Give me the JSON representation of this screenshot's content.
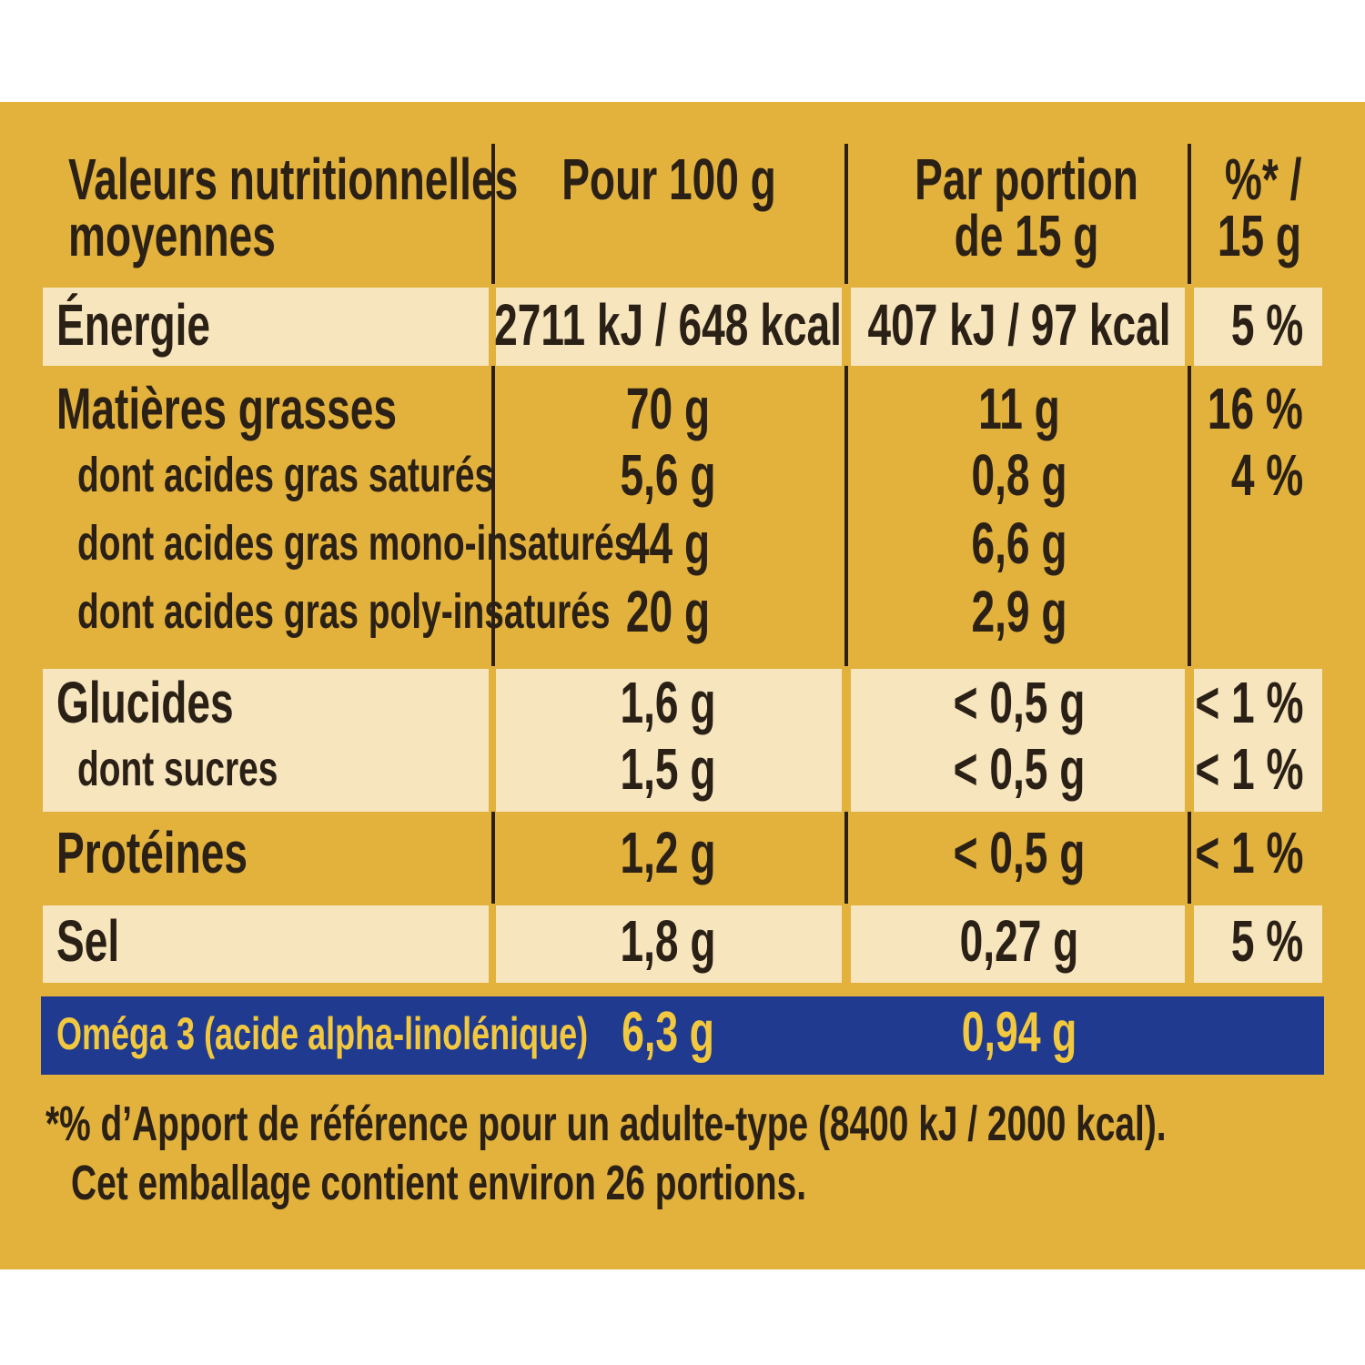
{
  "header": [
    [
      "Valeurs nutritionnelles",
      "moyennes"
    ],
    [
      "Pour 100 g"
    ],
    [
      "Par portion",
      "de 15 g"
    ],
    [
      "%* /",
      "15 g"
    ]
  ],
  "rows": [
    [
      "Énergie",
      "2711 kJ / 648 kcal",
      "407 kJ / 97 kcal",
      "5 %"
    ],
    [
      "Matières grasses",
      "70 g",
      "11 g",
      "16 %"
    ],
    [
      "dont acides gras saturés",
      "5,6 g",
      "0,8 g",
      "4 %"
    ],
    [
      "dont acides gras mono-insaturés",
      "44 g",
      "6,6 g",
      null
    ],
    [
      "dont acides gras poly-insaturés",
      "20 g",
      "2,9 g",
      null
    ],
    [
      "Glucides",
      "1,6 g",
      "< 0,5 g",
      "< 1 %"
    ],
    [
      "dont sucres",
      "1,5 g",
      "< 0,5 g",
      "< 1 %"
    ],
    [
      "Protéines",
      "1,2 g",
      "< 0,5 g",
      "< 1 %"
    ],
    [
      "Sel",
      "1,8 g",
      "0,27 g",
      "5 %"
    ]
  ],
  "omega": [
    "Oméga 3 (acide alpha-linolénique)",
    "6,3 g",
    "0,94 g"
  ],
  "footnote": [
    "*% d’Apport de référence pour un adulte-type (8400 kJ / 2000 kcal).",
    "Cet emballage contient environ 26 portions."
  ]
}
